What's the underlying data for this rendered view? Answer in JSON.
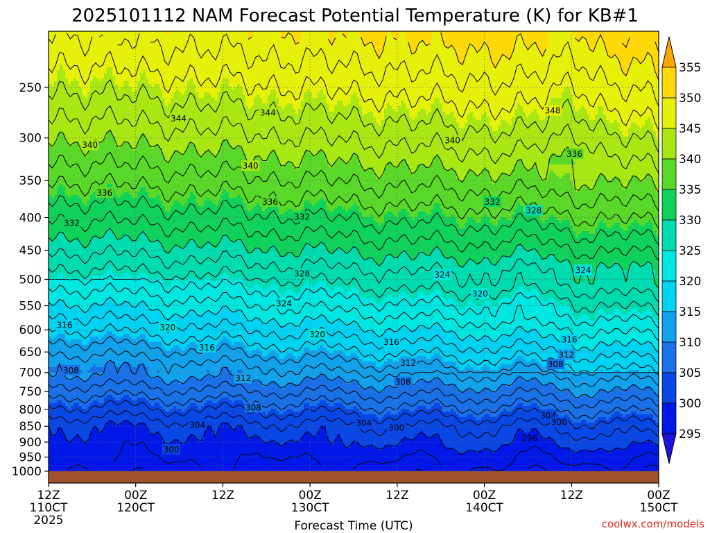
{
  "chart_data": {
    "type": "heatmap",
    "title": "2025101112 NAM Forecast Potential Temperature (K) for KB#1",
    "xlabel": "Forecast Time (UTC)",
    "ylabel": "",
    "x_ticks": [
      {
        "hour": 0,
        "l1": "12Z",
        "l2": "110CT",
        "l3": "2025"
      },
      {
        "hour": 12,
        "l1": "00Z",
        "l2": "120CT",
        "l3": ""
      },
      {
        "hour": 24,
        "l1": "12Z",
        "l2": "",
        "l3": ""
      },
      {
        "hour": 36,
        "l1": "00Z",
        "l2": "130CT",
        "l3": ""
      },
      {
        "hour": 48,
        "l1": "12Z",
        "l2": "",
        "l3": ""
      },
      {
        "hour": 60,
        "l1": "00Z",
        "l2": "140CT",
        "l3": ""
      },
      {
        "hour": 72,
        "l1": "12Z",
        "l2": "",
        "l3": ""
      },
      {
        "hour": 84,
        "l1": "00Z",
        "l2": "150CT",
        "l3": ""
      }
    ],
    "xlim": [
      0,
      84
    ],
    "ylim_hpa": [
      1000,
      200
    ],
    "y_ticks": [
      250,
      300,
      350,
      400,
      450,
      500,
      550,
      600,
      650,
      700,
      750,
      800,
      850,
      900,
      950,
      1000
    ],
    "colorbar": {
      "levels": [
        295,
        300,
        305,
        310,
        315,
        320,
        325,
        330,
        335,
        340,
        345,
        350,
        355
      ],
      "colors": {
        "lt295": "#2010e0",
        "295": "#0018e8",
        "300": "#0a48e6",
        "305": "#1b72e8",
        "310": "#12a2ec",
        "315": "#00d2f2",
        "320": "#00e6e0",
        "325": "#00dcb0",
        "330": "#10d25a",
        "335": "#5ad82a",
        "340": "#a8e614",
        "345": "#e6f00a",
        "350": "#ffd80a",
        "355": "#ffa500"
      }
    },
    "contour_interval_K": 2,
    "contour_labels": [
      {
        "v": "344",
        "h": 17.9,
        "p": 280
      },
      {
        "v": "344",
        "h": 30.2,
        "p": 274
      },
      {
        "v": "348",
        "h": 69.4,
        "p": 272
      },
      {
        "v": "340",
        "h": 5.7,
        "p": 308
      },
      {
        "v": "340",
        "h": 27.8,
        "p": 332
      },
      {
        "v": "340",
        "h": 55.6,
        "p": 303
      },
      {
        "v": "336",
        "h": 7.7,
        "p": 366
      },
      {
        "v": "336",
        "h": 72.4,
        "p": 318
      },
      {
        "v": "336",
        "h": 30.5,
        "p": 378
      },
      {
        "v": "332",
        "h": 3.2,
        "p": 408
      },
      {
        "v": "332",
        "h": 34.9,
        "p": 399
      },
      {
        "v": "332",
        "h": 61.1,
        "p": 378
      },
      {
        "v": "328",
        "h": 66.8,
        "p": 390
      },
      {
        "v": "328",
        "h": 34.9,
        "p": 490
      },
      {
        "v": "324",
        "h": 54.2,
        "p": 492
      },
      {
        "v": "324",
        "h": 73.6,
        "p": 484
      },
      {
        "v": "324",
        "h": 32.4,
        "p": 546
      },
      {
        "v": "320",
        "h": 59.4,
        "p": 527
      },
      {
        "v": "320",
        "h": 16.4,
        "p": 595
      },
      {
        "v": "320",
        "h": 37.0,
        "p": 610
      },
      {
        "v": "316",
        "h": 2.2,
        "p": 590
      },
      {
        "v": "316",
        "h": 21.8,
        "p": 640
      },
      {
        "v": "316",
        "h": 47.2,
        "p": 627
      },
      {
        "v": "316",
        "h": 71.7,
        "p": 622
      },
      {
        "v": "312",
        "h": 71.3,
        "p": 657
      },
      {
        "v": "312",
        "h": 49.5,
        "p": 676
      },
      {
        "v": "312",
        "h": 26.8,
        "p": 715
      },
      {
        "v": "308",
        "h": 3.1,
        "p": 695
      },
      {
        "v": "308",
        "h": 69.8,
        "p": 680
      },
      {
        "v": "308",
        "h": 48.8,
        "p": 725
      },
      {
        "v": "308",
        "h": 28.2,
        "p": 795
      },
      {
        "v": "304",
        "h": 20.5,
        "p": 846
      },
      {
        "v": "304",
        "h": 43.4,
        "p": 840
      },
      {
        "v": "304",
        "h": 68.8,
        "p": 818
      },
      {
        "v": "300",
        "h": 16.9,
        "p": 925
      },
      {
        "v": "300",
        "h": 47.9,
        "p": 855
      },
      {
        "v": "300",
        "h": 70.3,
        "p": 838
      },
      {
        "v": "296",
        "h": 66.2,
        "p": 888
      }
    ]
  },
  "credit": "coolwx.com/models"
}
